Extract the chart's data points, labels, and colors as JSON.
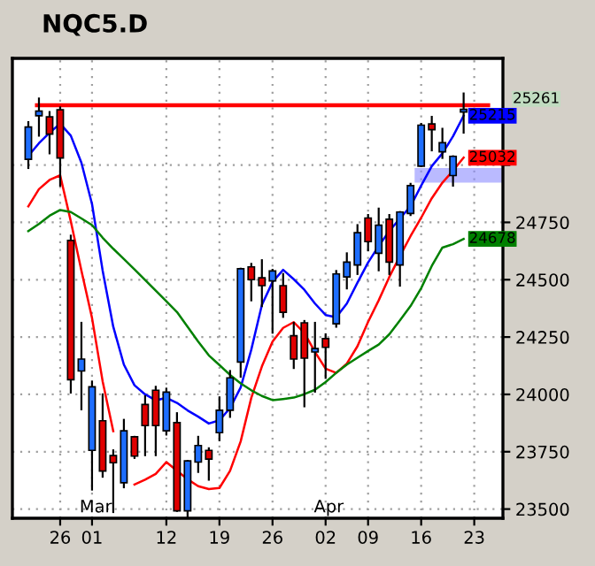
{
  "chart_data": {
    "type": "candlestick",
    "title": "NQC5.D",
    "categories": [
      null,
      null,
      null,
      "26",
      null,
      null,
      "01",
      null,
      null,
      null,
      null,
      null,
      null,
      "12",
      null,
      null,
      null,
      null,
      "19",
      null,
      null,
      null,
      null,
      "26",
      null,
      null,
      null,
      null,
      "02",
      null,
      null,
      null,
      "09",
      null,
      null,
      null,
      null,
      "16",
      null,
      null,
      null,
      null,
      "23"
    ],
    "ohlc": [
      [
        25025,
        25187,
        24987,
        25166
      ],
      [
        25215,
        25290,
        25128,
        25235
      ],
      [
        25210,
        25231,
        25051,
        25135
      ],
      [
        25241,
        25251,
        24910,
        25031
      ],
      [
        24671,
        24692,
        24008,
        24064
      ],
      [
        24102,
        24312,
        23935,
        24154
      ],
      [
        23756,
        24056,
        23585,
        24033
      ],
      [
        23885,
        24000,
        23641,
        23666
      ],
      [
        23733,
        23756,
        23487,
        23702
      ],
      [
        23615,
        23889,
        23595,
        23841
      ],
      [
        23815,
        23815,
        23723,
        23731
      ],
      [
        23956,
        23992,
        23735,
        23864
      ],
      [
        24018,
        24033,
        23735,
        23864
      ],
      [
        23841,
        24025,
        23825,
        24010
      ],
      [
        23877,
        23918,
        23492,
        23492
      ],
      [
        23492,
        23710,
        23465,
        23710
      ],
      [
        23705,
        23815,
        23662,
        23777
      ],
      [
        23756,
        23765,
        23628,
        23718
      ],
      [
        23833,
        23987,
        23800,
        23931
      ],
      [
        23931,
        24102,
        23902,
        24072
      ],
      [
        24141,
        24548,
        24077,
        24548
      ],
      [
        24556,
        24569,
        24410,
        24500
      ],
      [
        24508,
        24585,
        24385,
        24474
      ],
      [
        24495,
        24543,
        24269,
        24538
      ],
      [
        24474,
        24525,
        24338,
        24358
      ],
      [
        24256,
        24312,
        24115,
        24154
      ],
      [
        24312,
        24320,
        23948,
        24158
      ],
      [
        24185,
        24312,
        24012,
        24200
      ],
      [
        24243,
        24262,
        24072,
        24205
      ],
      [
        24308,
        24538,
        24295,
        24525
      ],
      [
        24512,
        24615,
        24462,
        24577
      ],
      [
        24564,
        24738,
        24525,
        24705
      ],
      [
        24769,
        24782,
        24628,
        24666
      ],
      [
        24615,
        24810,
        24541,
        24738
      ],
      [
        24764,
        24782,
        24525,
        24577
      ],
      [
        24564,
        24795,
        24474,
        24795
      ],
      [
        24789,
        24918,
        24782,
        24910
      ],
      [
        24995,
        25179,
        24995,
        25174
      ],
      [
        25179,
        25210,
        25064,
        25154
      ],
      [
        25058,
        25158,
        25031,
        25097
      ],
      [
        24954,
        25038,
        24910,
        25038
      ],
      [
        25231,
        25312,
        25141,
        25243
      ],
      null
    ],
    "colors": [
      "#1e6eff",
      "#1e6eff",
      "#e00000",
      "#e00000",
      "#e00000",
      "#1e6eff",
      "#1e6eff",
      "#e00000",
      "#e00000",
      "#1e6eff",
      "#e00000",
      "#e00000",
      "#e00000",
      "#1e6eff",
      "#e00000",
      "#1e6eff",
      "#1e6eff",
      "#e00000",
      "#1e6eff",
      "#1e6eff",
      "#1e6eff",
      "#e00000",
      "#e00000",
      "#1e6eff",
      "#e00000",
      "#e00000",
      "#e00000",
      "#1e6eff",
      "#e00000",
      "#1e6eff",
      "#1e6eff",
      "#1e6eff",
      "#e00000",
      "#1e6eff",
      "#e00000",
      "#1e6eff",
      "#1e6eff",
      "#1e6eff",
      "#e00000",
      "#1e6eff",
      "#1e6eff",
      "#1e6eff",
      null
    ],
    "series": [
      {
        "type": "line",
        "color": "#0000ff",
        "values": [
          25040,
          25095,
          25141,
          25180,
          25128,
          25010,
          24830,
          24540,
          24295,
          24130,
          24040,
          24000,
          23974,
          23985,
          23963,
          23930,
          23903,
          23873,
          23887,
          23940,
          24030,
          24195,
          24390,
          24490,
          24543,
          24502,
          24456,
          24396,
          24346,
          24336,
          24396,
          24487,
          24575,
          24647,
          24712,
          24767,
          24820,
          24910,
          24995,
          25051,
          25125,
          25215,
          null
        ],
        "value_labels": [
          null,
          null,
          null,
          null,
          null,
          null,
          null,
          null,
          null,
          null,
          null,
          null,
          null,
          null,
          null,
          null,
          null,
          null,
          null,
          null,
          null,
          null,
          null,
          null,
          null,
          null,
          null,
          null,
          null,
          null,
          null,
          null,
          null,
          null,
          null,
          null,
          null,
          null,
          null,
          null,
          null,
          "25215",
          null
        ]
      },
      {
        "type": "line",
        "color": "#ff0000",
        "values": [
          24820,
          24895,
          24935,
          24955,
          24755,
          24540,
          24333,
          24057,
          23840,
          null,
          23607,
          23628,
          23653,
          23705,
          23667,
          23630,
          23600,
          23587,
          23592,
          23667,
          23795,
          23985,
          24122,
          24230,
          24290,
          24315,
          24267,
          24185,
          24112,
          24094,
          24134,
          24210,
          24316,
          24410,
          24512,
          24603,
          24690,
          24770,
          24855,
          24923,
          24975,
          25032,
          null
        ],
        "value_labels": [
          null,
          null,
          null,
          null,
          null,
          null,
          null,
          null,
          null,
          null,
          null,
          null,
          null,
          null,
          null,
          null,
          null,
          null,
          null,
          null,
          null,
          null,
          null,
          null,
          null,
          null,
          null,
          null,
          null,
          null,
          null,
          null,
          null,
          null,
          null,
          null,
          null,
          null,
          null,
          null,
          null,
          "25032",
          null
        ]
      },
      {
        "type": "line",
        "color": "#008000",
        "values": [
          24712,
          24743,
          24779,
          24804,
          24795,
          24767,
          24738,
          24683,
          24635,
          24590,
          24545,
          24499,
          24452,
          24406,
          24359,
          24295,
          24230,
          24170,
          24128,
          24085,
          24048,
          24018,
          23993,
          23975,
          23980,
          23986,
          24001,
          24020,
          24054,
          24094,
          24130,
          24160,
          24189,
          24217,
          24262,
          24323,
          24385,
          24463,
          24560,
          24640,
          24655,
          24678,
          null
        ],
        "value_labels": [
          null,
          null,
          null,
          null,
          null,
          null,
          null,
          null,
          null,
          null,
          null,
          null,
          null,
          null,
          null,
          null,
          null,
          null,
          null,
          null,
          null,
          null,
          null,
          null,
          null,
          null,
          null,
          null,
          null,
          null,
          null,
          null,
          null,
          null,
          null,
          null,
          null,
          null,
          null,
          null,
          null,
          "24678",
          null
        ]
      }
    ],
    "ylim": [
      23460,
      25465
    ],
    "yticks": [
      23500,
      23750,
      24000,
      24250,
      24500,
      24750,
      {
        "value": 25000,
        "label": null
      }
    ],
    "grid": true,
    "ref_lines": [
      {
        "axis": "y",
        "value": 25261,
        "label": "25261",
        "color": "#ff0000"
      }
    ],
    "bands": [
      {
        "axis": "y",
        "from": 24923,
        "to": 24987,
        "color": "#8c8cff"
      }
    ],
    "annotations": [
      "Mar",
      "Apr"
    ]
  }
}
